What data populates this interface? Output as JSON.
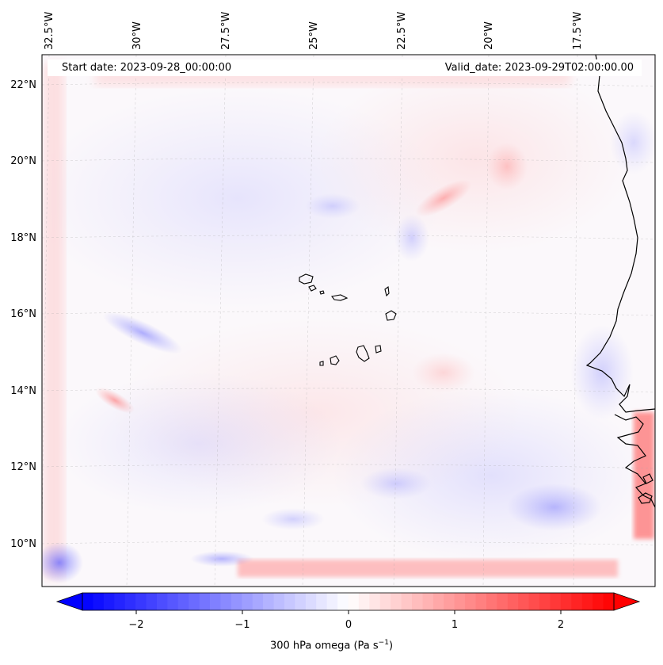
{
  "header": {
    "start_date": "Start date: 2023-09-28_00:00:00",
    "valid_date": "Valid_date: 2023-09-29T02:00:00.00"
  },
  "map": {
    "longitude_labels": [
      "32.5°W",
      "30°W",
      "27.5°W",
      "25°W",
      "22.5°W",
      "20°W",
      "17.5°W"
    ],
    "latitude_labels": [
      "22°N",
      "20°N",
      "18°N",
      "16°N",
      "14°N",
      "12°N",
      "10°N"
    ],
    "gridlines": true,
    "coastline_color": "#000000",
    "field_colormap": "bwr"
  },
  "colorbar": {
    "label_text": "300 hPa omega (Pa s",
    "label_exp": "−1",
    "label_close": ")",
    "ticks": [
      "−2",
      "−1",
      "0",
      "1",
      "2"
    ],
    "min": -2.6,
    "max": 2.6,
    "extend": "both",
    "colors": {
      "negative": "#0000ff",
      "zero": "#ffffff",
      "positive": "#ff0000"
    }
  }
}
